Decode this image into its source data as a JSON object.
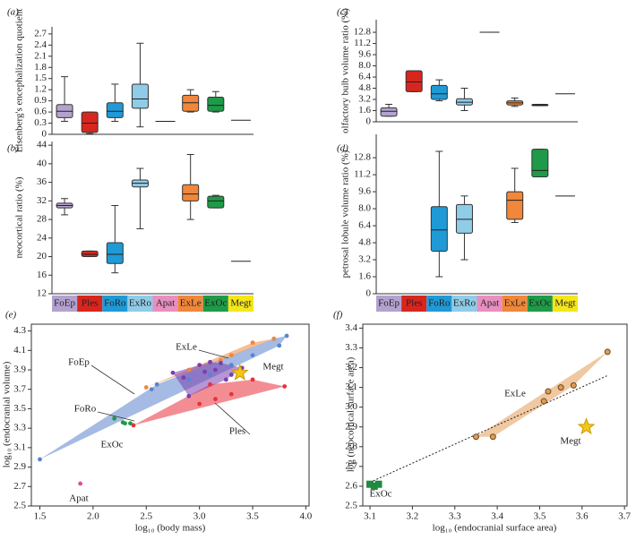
{
  "chart_data": [
    {
      "type": "box",
      "panel_label": "(a)",
      "ylabel": "Eisenberg's encephalization quotient",
      "categories": [
        null,
        null,
        null,
        null,
        null,
        null,
        null,
        null
      ],
      "colors": [
        "#b3a2cf",
        "#d7261e",
        "#1f9ad6",
        "#8fcce8",
        "#e88fbf",
        "#f0873a",
        "#1f9a48",
        "#f5e61a"
      ],
      "min": [
        0.35,
        0.02,
        0.35,
        0.2,
        null,
        0.6,
        0.6,
        null
      ],
      "q1": [
        0.45,
        0.05,
        0.45,
        0.7,
        null,
        0.62,
        0.62,
        null
      ],
      "median": [
        0.62,
        0.3,
        0.62,
        0.95,
        0.35,
        0.85,
        0.78,
        0.38
      ],
      "q3": [
        0.8,
        0.6,
        0.85,
        1.35,
        null,
        1.05,
        1.0,
        null
      ],
      "max": [
        1.55,
        0.6,
        1.35,
        2.45,
        null,
        1.2,
        1.15,
        null
      ],
      "ylim": [
        0,
        2.89
      ],
      "yticks": [
        0,
        0.3,
        0.6,
        0.9,
        1.2,
        1.5,
        1.8,
        2.1,
        2.4,
        2.7
      ]
    },
    {
      "type": "box",
      "panel_label": "(b)",
      "ylabel": "neocortical ratio (%)",
      "categories": [
        "FoEp",
        "Ples",
        "FoRo",
        "ExRo",
        "Apat",
        "ExLe",
        "ExOc",
        "Megt"
      ],
      "colors": [
        "#b3a2cf",
        "#d7261e",
        "#1f9ad6",
        "#8fcce8",
        "#e88fbf",
        "#f0873a",
        "#1f9a48",
        "#f5e61a"
      ],
      "min": [
        29,
        20,
        16.5,
        26,
        null,
        28,
        30.5,
        null
      ],
      "q1": [
        30.5,
        20,
        18.5,
        35,
        null,
        32,
        30.5,
        null
      ],
      "median": [
        31,
        20.5,
        20.5,
        35.8,
        null,
        33.5,
        32,
        19
      ],
      "q3": [
        31.5,
        21.2,
        23,
        36.5,
        null,
        35.5,
        33,
        null
      ],
      "max": [
        32.5,
        21.2,
        31,
        39,
        null,
        42,
        33.2,
        null
      ],
      "ylim": [
        12,
        44.8
      ],
      "yticks": [
        12,
        16,
        20,
        24,
        28,
        32,
        36,
        40,
        44
      ]
    },
    {
      "type": "box",
      "panel_label": "(c)",
      "ylabel": "olfactory bulb volume ratio (%)",
      "categories": [
        null,
        null,
        null,
        null,
        null,
        null,
        null,
        null
      ],
      "colors": [
        "#b3a2cf",
        "#d7261e",
        "#1f9ad6",
        "#8fcce8",
        "#e88fbf",
        "#f0873a",
        "#1f9a48",
        "#f5e61a"
      ],
      "min": [
        0.8,
        4.3,
        3.0,
        1.6,
        null,
        2.2,
        2.3,
        null
      ],
      "q1": [
        0.8,
        4.3,
        3.2,
        2.4,
        null,
        2.4,
        2.3,
        null
      ],
      "median": [
        1.5,
        5.7,
        4.0,
        2.8,
        12.8,
        2.7,
        2.4,
        4.0
      ],
      "q3": [
        2.0,
        7.3,
        5.2,
        3.3,
        null,
        3.0,
        2.5,
        null
      ],
      "max": [
        2.5,
        7.3,
        6.0,
        4.8,
        null,
        3.4,
        2.5,
        null
      ],
      "ylim": [
        0,
        14.6
      ],
      "yticks": [
        0,
        1.6,
        3.2,
        4.8,
        6.4,
        {
          "value": 8,
          "label": "8.0"
        },
        9.6,
        11.2,
        12.8
      ]
    },
    {
      "type": "box",
      "panel_label": "(d)",
      "ylabel": "petrosal lobule volume ratio (%)",
      "categories": [
        "FoEp",
        "Ples",
        "FoRo",
        "ExRo",
        "Apat",
        "ExLe",
        "ExOc",
        "Megt"
      ],
      "colors": [
        "#b3a2cf",
        "#d7261e",
        "#1f9ad6",
        "#8fcce8",
        "#e88fbf",
        "#f0873a",
        "#1f9a48",
        "#f5e61a"
      ],
      "min": [
        null,
        null,
        1.6,
        3.2,
        null,
        6.7,
        11.0,
        null
      ],
      "q1": [
        null,
        null,
        4.0,
        5.7,
        null,
        7.0,
        11.0,
        null
      ],
      "median": [
        null,
        null,
        6.0,
        7.0,
        null,
        8.8,
        11.6,
        9.2
      ],
      "q3": [
        null,
        null,
        8.2,
        8.4,
        null,
        9.6,
        13.6,
        null
      ],
      "max": [
        null,
        null,
        13.4,
        9.2,
        null,
        11.8,
        13.6,
        null
      ],
      "ylim": [
        0,
        15
      ],
      "yticks": [
        0,
        1.6,
        3.2,
        4.8,
        6.4,
        {
          "value": 8,
          "label": "8.0"
        },
        9.6,
        11.2,
        12.8
      ]
    },
    {
      "type": "scatter",
      "panel_label": "(e)",
      "xlabel": "log₁₀ (body mass)",
      "ylabel": "log₁₀ (endocranial volume)",
      "xlim": [
        1.42,
        4.03
      ],
      "ylim": [
        2.5,
        4.37
      ],
      "xticks": [
        1.5,
        {
          "value": 2,
          "label": "2.0"
        },
        2.5,
        {
          "value": 3,
          "label": "3.0"
        },
        3.5,
        {
          "value": 4,
          "label": "4.0"
        }
      ],
      "yticks": [
        2.5,
        2.7,
        2.9,
        3.1,
        3.3,
        3.5,
        3.7,
        3.9,
        4.1,
        4.3
      ],
      "series": [
        {
          "name": "FoRo",
          "color": "#5b84cc",
          "hull": true,
          "x": [
            1.5,
            2.55,
            2.6,
            2.9,
            3.1,
            3.3,
            3.5,
            3.75,
            3.82,
            3.7
          ],
          "y": [
            2.98,
            3.7,
            3.75,
            3.8,
            3.85,
            3.95,
            4.05,
            4.15,
            4.25,
            4.22
          ]
        },
        {
          "name": "Ples",
          "color": "#e8323a",
          "hull": true,
          "x": [
            2.38,
            3.0,
            3.15,
            3.3,
            3.8,
            3.1,
            3.5
          ],
          "y": [
            3.33,
            3.55,
            3.6,
            3.65,
            3.73,
            3.75,
            3.8
          ]
        },
        {
          "name": "ExLe",
          "color": "#f0873a",
          "hull": true,
          "x": [
            2.5,
            2.9,
            3.2,
            3.5,
            3.7,
            3.3
          ],
          "y": [
            3.72,
            3.9,
            4.0,
            4.18,
            4.22,
            4.05
          ]
        },
        {
          "name": "FoEp",
          "color": "#7a3fae",
          "hull": true,
          "x": [
            2.75,
            3.0,
            3.05,
            3.1,
            3.15,
            3.2,
            3.3,
            3.4,
            2.85,
            3.25,
            2.9
          ],
          "y": [
            3.87,
            3.95,
            3.88,
            3.98,
            3.9,
            3.97,
            3.85,
            3.92,
            3.82,
            3.8,
            3.63
          ]
        },
        {
          "name": "ExOc",
          "color": "#1f9a48",
          "hull": false,
          "x": [
            2.2,
            2.3,
            2.35,
            2.28
          ],
          "y": [
            3.4,
            3.35,
            3.35,
            3.36
          ]
        },
        {
          "name": "Apat",
          "color": "#e04c9a",
          "hull": false,
          "x": [
            1.88
          ],
          "y": [
            2.73
          ]
        },
        {
          "name": "Megt",
          "color": "#f5c518",
          "hull": false,
          "marker": "star",
          "x": [
            3.38
          ],
          "y": [
            3.87
          ]
        }
      ]
    },
    {
      "type": "scatter",
      "panel_label": "(f)",
      "xlabel": "log₁₀ (endocranial surface area)",
      "ylabel": "log (neocortical surface area)",
      "xlim": [
        3.083,
        3.706
      ],
      "ylim": [
        2.5,
        3.42
      ],
      "xticks": [
        3.1,
        3.2,
        3.3,
        3.4,
        3.5,
        3.6,
        3.7
      ],
      "yticks": [
        2.5,
        2.6,
        2.7,
        2.8,
        2.9,
        {
          "value": 3,
          "label": "3.0"
        },
        3.1,
        3.2,
        3.3,
        3.4
      ],
      "trendline": {
        "x": [
          3.1,
          3.66
        ],
        "y": [
          2.62,
          3.16
        ]
      },
      "series": [
        {
          "name": "ExLe",
          "color": "#e39a55",
          "hull": true,
          "x": [
            3.35,
            3.39,
            3.51,
            3.52,
            3.55,
            3.58,
            3.66
          ],
          "y": [
            2.85,
            2.85,
            3.03,
            3.08,
            3.1,
            3.11,
            3.28
          ]
        },
        {
          "name": "ExOc",
          "color": "#1f8a40",
          "hull": false,
          "marker": "square",
          "x": [
            3.1,
            3.11,
            3.12
          ],
          "y": [
            2.61,
            2.6,
            2.61
          ]
        },
        {
          "name": "Megt",
          "color": "#f5c518",
          "hull": false,
          "marker": "star",
          "x": [
            3.61
          ],
          "y": [
            2.9
          ]
        }
      ]
    }
  ]
}
